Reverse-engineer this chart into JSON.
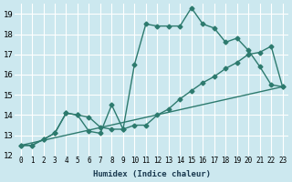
{
  "xlabel": "Humidex (Indice chaleur)",
  "background_color": "#cce8ef",
  "grid_color": "#ffffff",
  "line_color": "#2d7a6e",
  "xlim": [
    -0.5,
    23.5
  ],
  "ylim": [
    12,
    19.5
  ],
  "yticks": [
    12,
    13,
    14,
    15,
    16,
    17,
    18,
    19
  ],
  "xticks": [
    0,
    1,
    2,
    3,
    4,
    5,
    6,
    7,
    8,
    9,
    10,
    11,
    12,
    13,
    14,
    15,
    16,
    17,
    18,
    19,
    20,
    21,
    22,
    23
  ],
  "line1_x": [
    0,
    1,
    2,
    3,
    4,
    5,
    6,
    7,
    8,
    9,
    10,
    11,
    12,
    13,
    14,
    15,
    16,
    17,
    18,
    19,
    20,
    21,
    22,
    23
  ],
  "line1_y": [
    12.5,
    12.5,
    12.8,
    13.1,
    14.1,
    14.0,
    13.2,
    13.1,
    14.5,
    13.3,
    16.5,
    18.5,
    18.4,
    18.4,
    18.4,
    19.3,
    18.5,
    18.3,
    17.6,
    17.8,
    17.2,
    16.4,
    15.5,
    15.4
  ],
  "line2_x": [
    0,
    1,
    2,
    3,
    4,
    5,
    6,
    7,
    8,
    9,
    10,
    11,
    12,
    13,
    14,
    15,
    16,
    17,
    18,
    19,
    20,
    21,
    22,
    23
  ],
  "line2_y": [
    12.5,
    12.5,
    12.8,
    13.1,
    14.1,
    14.0,
    13.9,
    13.4,
    13.3,
    13.3,
    13.5,
    13.5,
    14.0,
    14.3,
    14.8,
    15.2,
    15.6,
    15.9,
    16.3,
    16.6,
    17.0,
    17.1,
    17.4,
    15.4
  ],
  "line3_x": [
    0,
    23
  ],
  "line3_y": [
    12.5,
    15.4
  ],
  "marker_size": 2.5,
  "line_width": 1.0
}
